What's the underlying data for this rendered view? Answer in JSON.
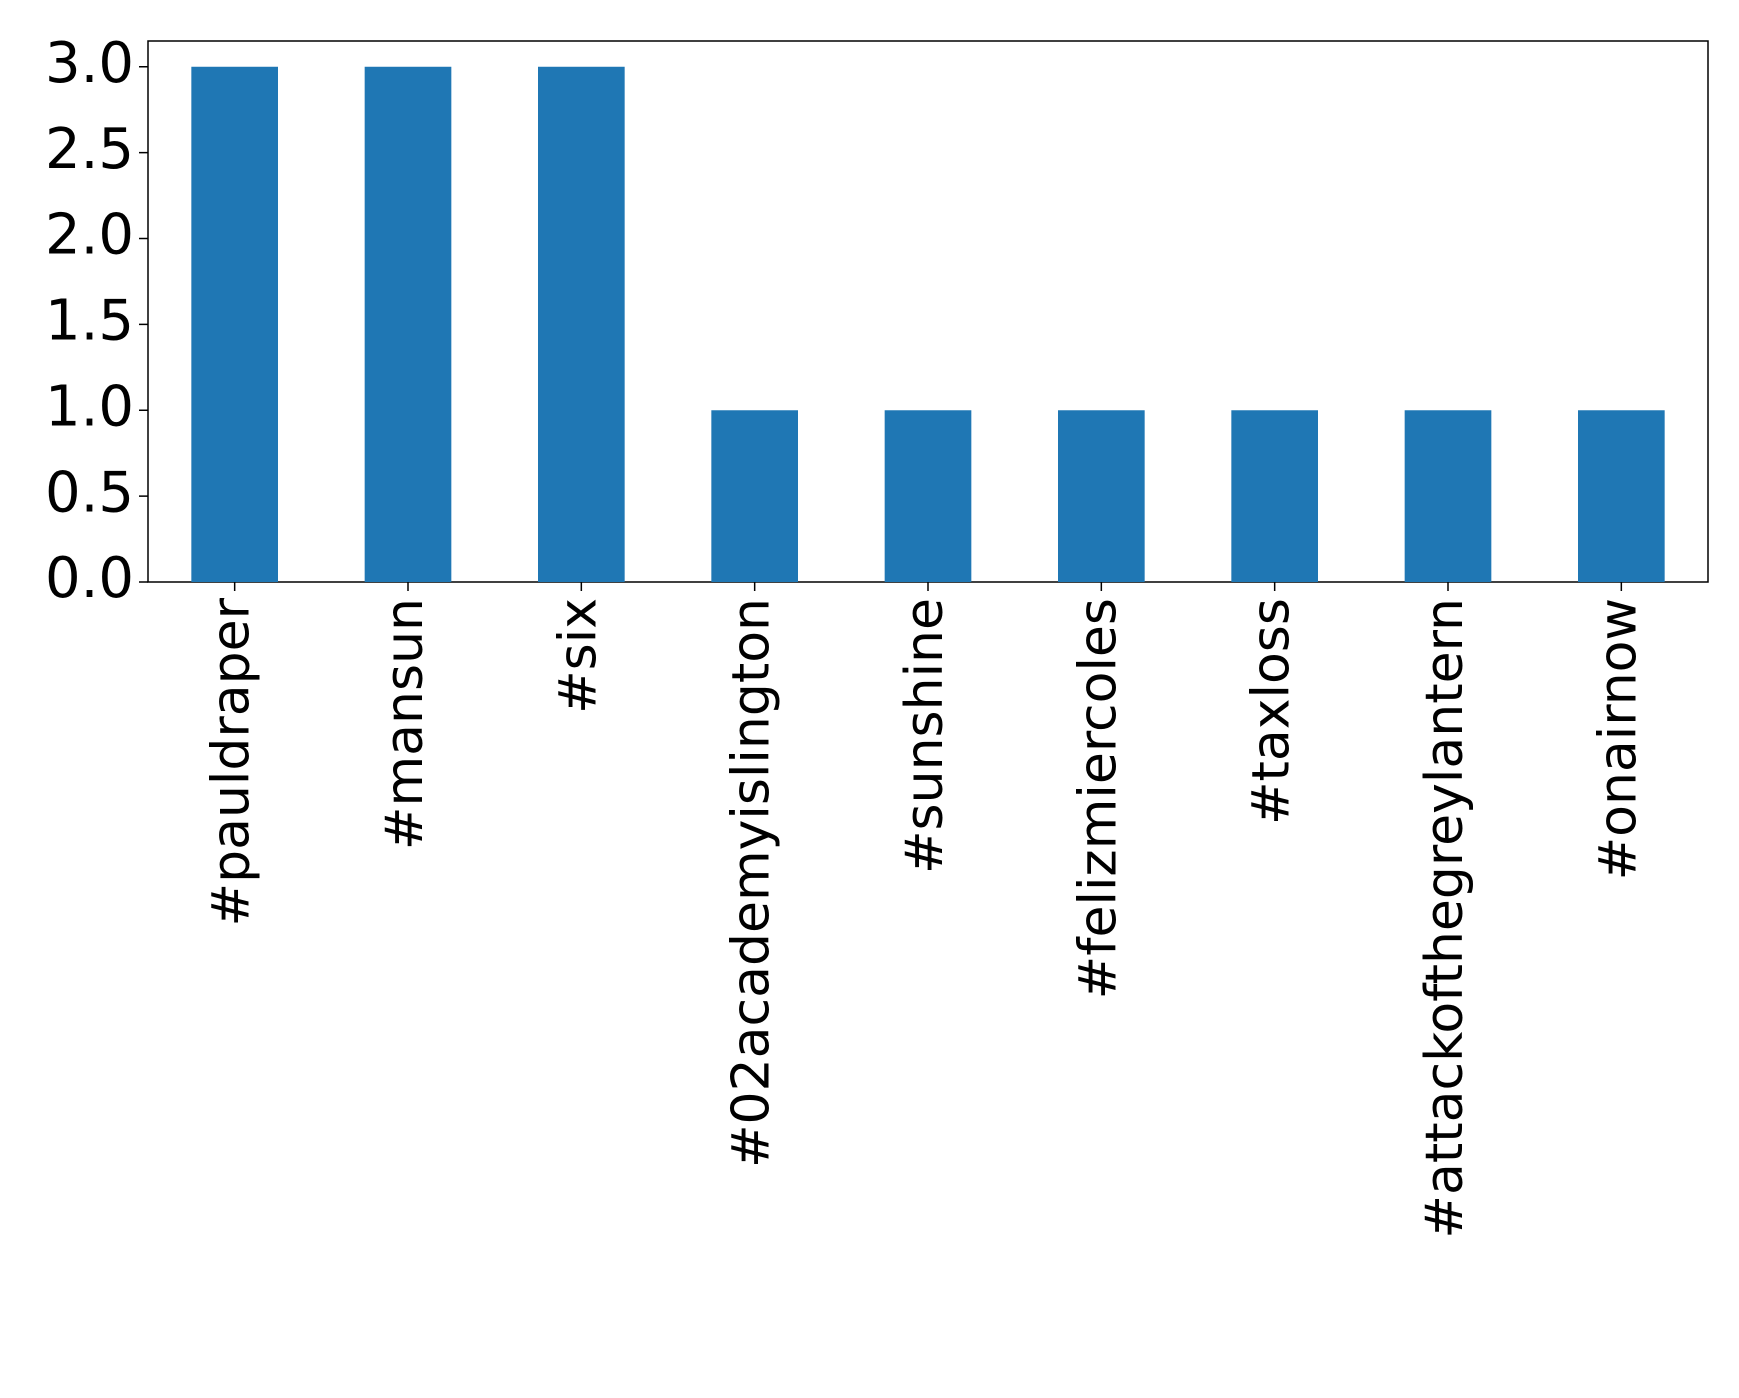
{
  "chart_data": {
    "type": "bar",
    "categories": [
      "#pauldraper",
      "#mansun",
      "#six",
      "#02academyislington",
      "#sunshine",
      "#felizmiercoles",
      "#taxloss",
      "#attackofthegreylantern",
      "#onairnow"
    ],
    "values": [
      3,
      3,
      3,
      1,
      1,
      1,
      1,
      1,
      1
    ],
    "color": "#1f77b4",
    "ylim": [
      0,
      3.15
    ],
    "yticks": [
      {
        "value": 0,
        "label": "0.0"
      },
      {
        "value": 0.5,
        "label": "0.5"
      },
      {
        "value": 1,
        "label": "1.0"
      },
      {
        "value": 1.5,
        "label": "1.5"
      },
      {
        "value": 2,
        "label": "2.0"
      },
      {
        "value": 2.5,
        "label": "2.5"
      },
      {
        "value": 3,
        "label": "3.0"
      }
    ],
    "grid": false
  }
}
